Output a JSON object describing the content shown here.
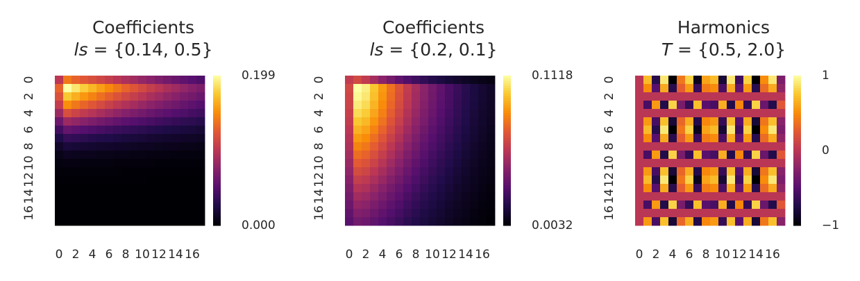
{
  "colors": {
    "colormap": "inferno",
    "background": "#ffffff",
    "text": "#262626"
  },
  "chart_data": [
    {
      "type": "heatmap",
      "title_line1": "Coefficients",
      "title_symbol": "ls",
      "title_value": " = {0.14, 0.5}",
      "x_tick_labels": [
        "0",
        "2",
        "4",
        "6",
        "8",
        "10",
        "12",
        "14",
        "16"
      ],
      "y_tick_labels": [
        "0",
        "2",
        "4",
        "6",
        "8",
        "10",
        "12",
        "14",
        "16"
      ],
      "rows": 18,
      "cols": 18,
      "colorbar": {
        "min": 0.0,
        "max": 0.199,
        "min_label": "0.000",
        "max_label": "0.199"
      },
      "values": [
        [
          0.1,
          0.14,
          0.13,
          0.124,
          0.118,
          0.112,
          0.106,
          0.099,
          0.093,
          0.087,
          0.081,
          0.076,
          0.07,
          0.065,
          0.06,
          0.055,
          0.051,
          0.047
        ],
        [
          0.13,
          0.199,
          0.188,
          0.177,
          0.167,
          0.157,
          0.148,
          0.139,
          0.13,
          0.122,
          0.114,
          0.106,
          0.099,
          0.092,
          0.086,
          0.08,
          0.074,
          0.069
        ],
        [
          0.12,
          0.175,
          0.164,
          0.154,
          0.145,
          0.136,
          0.128,
          0.12,
          0.113,
          0.106,
          0.099,
          0.092,
          0.086,
          0.08,
          0.075,
          0.069,
          0.065,
          0.06
        ],
        [
          0.105,
          0.15,
          0.14,
          0.131,
          0.123,
          0.115,
          0.108,
          0.101,
          0.095,
          0.089,
          0.083,
          0.077,
          0.072,
          0.067,
          0.063,
          0.058,
          0.054,
          0.05
        ],
        [
          0.085,
          0.118,
          0.11,
          0.103,
          0.097,
          0.091,
          0.085,
          0.079,
          0.074,
          0.069,
          0.065,
          0.06,
          0.056,
          0.053,
          0.049,
          0.046,
          0.043,
          0.04
        ],
        [
          0.062,
          0.085,
          0.08,
          0.075,
          0.07,
          0.065,
          0.061,
          0.057,
          0.053,
          0.05,
          0.047,
          0.044,
          0.041,
          0.038,
          0.035,
          0.033,
          0.031,
          0.029
        ],
        [
          0.042,
          0.058,
          0.054,
          0.05,
          0.047,
          0.044,
          0.041,
          0.038,
          0.036,
          0.034,
          0.031,
          0.029,
          0.027,
          0.025,
          0.024,
          0.022,
          0.021,
          0.019
        ],
        [
          0.026,
          0.036,
          0.034,
          0.031,
          0.029,
          0.027,
          0.026,
          0.024,
          0.022,
          0.021,
          0.02,
          0.018,
          0.017,
          0.016,
          0.015,
          0.014,
          0.013,
          0.012
        ],
        [
          0.015,
          0.021,
          0.019,
          0.018,
          0.017,
          0.016,
          0.015,
          0.014,
          0.013,
          0.012,
          0.011,
          0.011,
          0.01,
          0.009,
          0.009,
          0.008,
          0.008,
          0.007
        ],
        [
          0.008,
          0.011,
          0.01,
          0.009,
          0.009,
          0.008,
          0.008,
          0.007,
          0.007,
          0.006,
          0.006,
          0.005,
          0.005,
          0.005,
          0.004,
          0.004,
          0.004,
          0.004
        ],
        [
          0.004,
          0.005,
          0.005,
          0.004,
          0.004,
          0.004,
          0.004,
          0.003,
          0.003,
          0.003,
          0.003,
          0.003,
          0.002,
          0.002,
          0.002,
          0.002,
          0.002,
          0.002
        ],
        [
          0.002,
          0.002,
          0.002,
          0.002,
          0.002,
          0.002,
          0.002,
          0.002,
          0.001,
          0.001,
          0.001,
          0.001,
          0.001,
          0.001,
          0.001,
          0.001,
          0.001,
          0.001
        ],
        [
          0.001,
          0.001,
          0.001,
          0.001,
          0.001,
          0.001,
          0.001,
          0.001,
          0.001,
          0.001,
          0.001,
          0.0,
          0.0,
          0.0,
          0.0,
          0.0,
          0.0,
          0.0
        ],
        [
          0.0,
          0.0,
          0.0,
          0.0,
          0.0,
          0.0,
          0.0,
          0.0,
          0.0,
          0.0,
          0.0,
          0.0,
          0.0,
          0.0,
          0.0,
          0.0,
          0.0,
          0.0
        ],
        [
          0.0,
          0.0,
          0.0,
          0.0,
          0.0,
          0.0,
          0.0,
          0.0,
          0.0,
          0.0,
          0.0,
          0.0,
          0.0,
          0.0,
          0.0,
          0.0,
          0.0,
          0.0
        ],
        [
          0.0,
          0.0,
          0.0,
          0.0,
          0.0,
          0.0,
          0.0,
          0.0,
          0.0,
          0.0,
          0.0,
          0.0,
          0.0,
          0.0,
          0.0,
          0.0,
          0.0,
          0.0
        ],
        [
          0.0,
          0.0,
          0.0,
          0.0,
          0.0,
          0.0,
          0.0,
          0.0,
          0.0,
          0.0,
          0.0,
          0.0,
          0.0,
          0.0,
          0.0,
          0.0,
          0.0,
          0.0
        ],
        [
          0.0,
          0.0,
          0.0,
          0.0,
          0.0,
          0.0,
          0.0,
          0.0,
          0.0,
          0.0,
          0.0,
          0.0,
          0.0,
          0.0,
          0.0,
          0.0,
          0.0,
          0.0
        ]
      ]
    },
    {
      "type": "heatmap",
      "title_line1": "Coefficients",
      "title_symbol": "ls",
      "title_value": " = {0.2, 0.1}",
      "x_tick_labels": [
        "0",
        "2",
        "4",
        "6",
        "8",
        "10",
        "12",
        "14",
        "16"
      ],
      "y_tick_labels": [
        "0",
        "2",
        "4",
        "6",
        "8",
        "10",
        "12",
        "14",
        "16"
      ],
      "rows": 18,
      "cols": 18,
      "colorbar": {
        "min": 0.0032,
        "max": 0.1118,
        "min_label": "0.0032",
        "max_label": "0.1118"
      },
      "values": [
        [
          0.06,
          0.065,
          0.06,
          0.052,
          0.045,
          0.039,
          0.0335,
          0.029,
          0.025,
          0.0215,
          0.0185,
          0.016,
          0.0138,
          0.0118,
          0.01,
          0.0086,
          0.0074,
          0.0064
        ],
        [
          0.065,
          0.1118,
          0.108,
          0.098,
          0.088,
          0.078,
          0.069,
          0.06,
          0.052,
          0.045,
          0.0385,
          0.033,
          0.028,
          0.0235,
          0.0195,
          0.016,
          0.013,
          0.0105
        ],
        [
          0.064,
          0.11,
          0.106,
          0.0965,
          0.0865,
          0.0768,
          0.068,
          0.0592,
          0.0513,
          0.0444,
          0.038,
          0.0326,
          0.0276,
          0.0232,
          0.0192,
          0.0158,
          0.0128,
          0.0103
        ],
        [
          0.063,
          0.107,
          0.103,
          0.094,
          0.0845,
          0.075,
          0.0664,
          0.0578,
          0.0501,
          0.0433,
          0.0371,
          0.0318,
          0.027,
          0.0226,
          0.0188,
          0.0154,
          0.0125,
          0.01
        ],
        [
          0.0615,
          0.103,
          0.0995,
          0.0905,
          0.0815,
          0.0724,
          0.0641,
          0.0558,
          0.0484,
          0.0418,
          0.0358,
          0.0307,
          0.026,
          0.0218,
          0.0181,
          0.0149,
          0.012,
          0.0097
        ],
        [
          0.06,
          0.0985,
          0.095,
          0.0865,
          0.078,
          0.0693,
          0.0613,
          0.0534,
          0.0463,
          0.04,
          0.0342,
          0.0294,
          0.0249,
          0.0209,
          0.0173,
          0.0142,
          0.0115,
          0.0093
        ],
        [
          0.058,
          0.0935,
          0.09,
          0.082,
          0.074,
          0.0657,
          0.0581,
          0.0506,
          0.0439,
          0.0379,
          0.0324,
          0.0278,
          0.0236,
          0.0198,
          0.0164,
          0.0135,
          0.0109,
          0.0088
        ],
        [
          0.056,
          0.088,
          0.0848,
          0.0773,
          0.0697,
          0.0619,
          0.0548,
          0.0477,
          0.0413,
          0.0357,
          0.0306,
          0.0262,
          0.0222,
          0.0187,
          0.0155,
          0.0127,
          0.0103,
          0.0083
        ],
        [
          0.054,
          0.0825,
          0.0795,
          0.0724,
          0.0653,
          0.058,
          0.0513,
          0.0447,
          0.0387,
          0.0335,
          0.0287,
          0.0246,
          0.0208,
          0.0175,
          0.0145,
          0.0119,
          0.0096,
          0.0078
        ],
        [
          0.0515,
          0.077,
          0.0742,
          0.0676,
          0.0609,
          0.0541,
          0.0479,
          0.0417,
          0.0362,
          0.0312,
          0.0268,
          0.0229,
          0.0194,
          0.0163,
          0.0135,
          0.0111,
          0.009,
          0.0073
        ],
        [
          0.049,
          0.0715,
          0.0689,
          0.0628,
          0.0566,
          0.0503,
          0.0445,
          0.0387,
          0.0336,
          0.029,
          0.0249,
          0.0213,
          0.0181,
          0.0152,
          0.0126,
          0.0103,
          0.0083,
          0.0068
        ],
        [
          0.0465,
          0.0662,
          0.0638,
          0.0581,
          0.0524,
          0.0465,
          0.0412,
          0.0358,
          0.0311,
          0.0268,
          0.023,
          0.0197,
          0.0167,
          0.014,
          0.0116,
          0.0095,
          0.0077,
          0.0062
        ],
        [
          0.044,
          0.061,
          0.0588,
          0.0536,
          0.0483,
          0.0429,
          0.038,
          0.033,
          0.0287,
          0.0247,
          0.0212,
          0.0182,
          0.0154,
          0.0129,
          0.0107,
          0.0088,
          0.0071,
          0.0058
        ],
        [
          0.0415,
          0.056,
          0.054,
          0.0492,
          0.0443,
          0.0394,
          0.0349,
          0.0303,
          0.0263,
          0.0227,
          0.0195,
          0.0167,
          0.0141,
          0.0119,
          0.0098,
          0.0081,
          0.0065,
          0.0053
        ],
        [
          0.039,
          0.0512,
          0.0494,
          0.045,
          0.0405,
          0.036,
          0.0319,
          0.0277,
          0.0241,
          0.0208,
          0.0178,
          0.0153,
          0.0129,
          0.0109,
          0.009,
          0.0074,
          0.006,
          0.0048
        ],
        [
          0.0365,
          0.0467,
          0.045,
          0.041,
          0.037,
          0.0328,
          0.0291,
          0.0253,
          0.0219,
          0.0189,
          0.0162,
          0.0139,
          0.0118,
          0.0099,
          0.0082,
          0.0067,
          0.0054,
          0.0044
        ],
        [
          0.034,
          0.0425,
          0.041,
          0.0373,
          0.0336,
          0.0299,
          0.0265,
          0.023,
          0.02,
          0.0172,
          0.0148,
          0.0127,
          0.0107,
          0.009,
          0.0075,
          0.0061,
          0.0049,
          0.004
        ],
        [
          0.0315,
          0.0385,
          0.0371,
          0.0338,
          0.0304,
          0.0271,
          0.024,
          0.0208,
          0.0181,
          0.0156,
          0.0134,
          0.0115,
          0.0097,
          0.0082,
          0.0068,
          0.0055,
          0.0045,
          0.0036
        ]
      ]
    },
    {
      "type": "heatmap",
      "title_line1": "Harmonics",
      "title_symbol": "T",
      "title_value": " = {0.5, 2.0}",
      "x_tick_labels": [
        "0",
        "2",
        "4",
        "6",
        "8",
        "10",
        "12",
        "14",
        "16"
      ],
      "y_tick_labels": [
        "0",
        "2",
        "4",
        "6",
        "8",
        "10",
        "12",
        "14",
        "16"
      ],
      "rows": 18,
      "cols": 18,
      "colorbar": {
        "min": -1,
        "max": 1,
        "min_label": "−1",
        "mid_label": "0",
        "max_label": "1"
      },
      "col_pattern": [
        0.0,
        0.7,
        -0.7,
        0.9,
        -1.0,
        0.4,
        0.8,
        -0.9,
        0.6,
        0.7,
        -0.8,
        0.9,
        -0.6,
        0.8,
        -1.0,
        0.5,
        0.9,
        -0.3
      ],
      "row_pattern": [
        1.0,
        0.7,
        0.0,
        -0.8,
        0.0,
        0.8,
        1.0,
        0.7,
        0.0,
        -0.8,
        0.0,
        0.8,
        1.0,
        0.7,
        0.0,
        -0.8,
        0.0,
        0.8
      ]
    }
  ]
}
